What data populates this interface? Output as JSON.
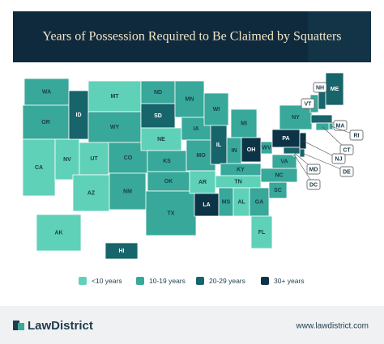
{
  "header": {
    "title": "Years of Possession Required to Be Claimed by Squatters"
  },
  "legend": [
    {
      "label": "<10 years",
      "color": "#5fd1b8"
    },
    {
      "label": "10-19 years",
      "color": "#38a89a"
    },
    {
      "label": "20-29 years",
      "color": "#17646b"
    },
    {
      "label": "30+ years",
      "color": "#0c3446"
    }
  ],
  "states": [
    {
      "label": "WA",
      "category": 1
    },
    {
      "label": "OR",
      "category": 1
    },
    {
      "label": "CA",
      "category": 0
    },
    {
      "label": "NV",
      "category": 0
    },
    {
      "label": "ID",
      "category": 2
    },
    {
      "label": "MT",
      "category": 0
    },
    {
      "label": "WY",
      "category": 1
    },
    {
      "label": "UT",
      "category": 0
    },
    {
      "label": "AZ",
      "category": 0
    },
    {
      "label": "CO",
      "category": 1
    },
    {
      "label": "NM",
      "category": 1
    },
    {
      "label": "ND",
      "category": 1
    },
    {
      "label": "SD",
      "category": 2
    },
    {
      "label": "NE",
      "category": 0
    },
    {
      "label": "KS",
      "category": 1
    },
    {
      "label": "OK",
      "category": 1
    },
    {
      "label": "TX",
      "category": 1
    },
    {
      "label": "MN",
      "category": 1
    },
    {
      "label": "IA",
      "category": 1
    },
    {
      "label": "MO",
      "category": 1
    },
    {
      "label": "AR",
      "category": 0
    },
    {
      "label": "LA",
      "category": 3
    },
    {
      "label": "WI",
      "category": 1
    },
    {
      "label": "IL",
      "category": 2
    },
    {
      "label": "MI",
      "category": 1
    },
    {
      "label": "IN",
      "category": 1
    },
    {
      "label": "OH",
      "category": 3
    },
    {
      "label": "KY",
      "category": 1
    },
    {
      "label": "TN",
      "category": 0
    },
    {
      "label": "MS",
      "category": 1
    },
    {
      "label": "AL",
      "category": 0
    },
    {
      "label": "GA",
      "category": 1
    },
    {
      "label": "FL",
      "category": 0
    },
    {
      "label": "SC",
      "category": 1
    },
    {
      "label": "NC",
      "category": 1
    },
    {
      "label": "VA",
      "category": 1
    },
    {
      "label": "WV",
      "category": 1
    },
    {
      "label": "PA",
      "category": 3
    },
    {
      "label": "NY",
      "category": 1
    },
    {
      "label": "VT",
      "category": 1
    },
    {
      "label": "NH",
      "category": 2
    },
    {
      "label": "ME",
      "category": 2
    },
    {
      "label": "MA",
      "category": 2
    },
    {
      "label": "RI",
      "category": 1
    },
    {
      "label": "CT",
      "category": 1
    },
    {
      "label": "NJ",
      "category": 3
    },
    {
      "label": "DE",
      "category": 2
    },
    {
      "label": "MD",
      "category": 2
    },
    {
      "label": "DC",
      "category": 1
    },
    {
      "label": "AK",
      "category": 0
    },
    {
      "label": "HI",
      "category": 2
    }
  ],
  "footer": {
    "brand": "LawDistrict",
    "url": "www.lawdistrict.com"
  }
}
